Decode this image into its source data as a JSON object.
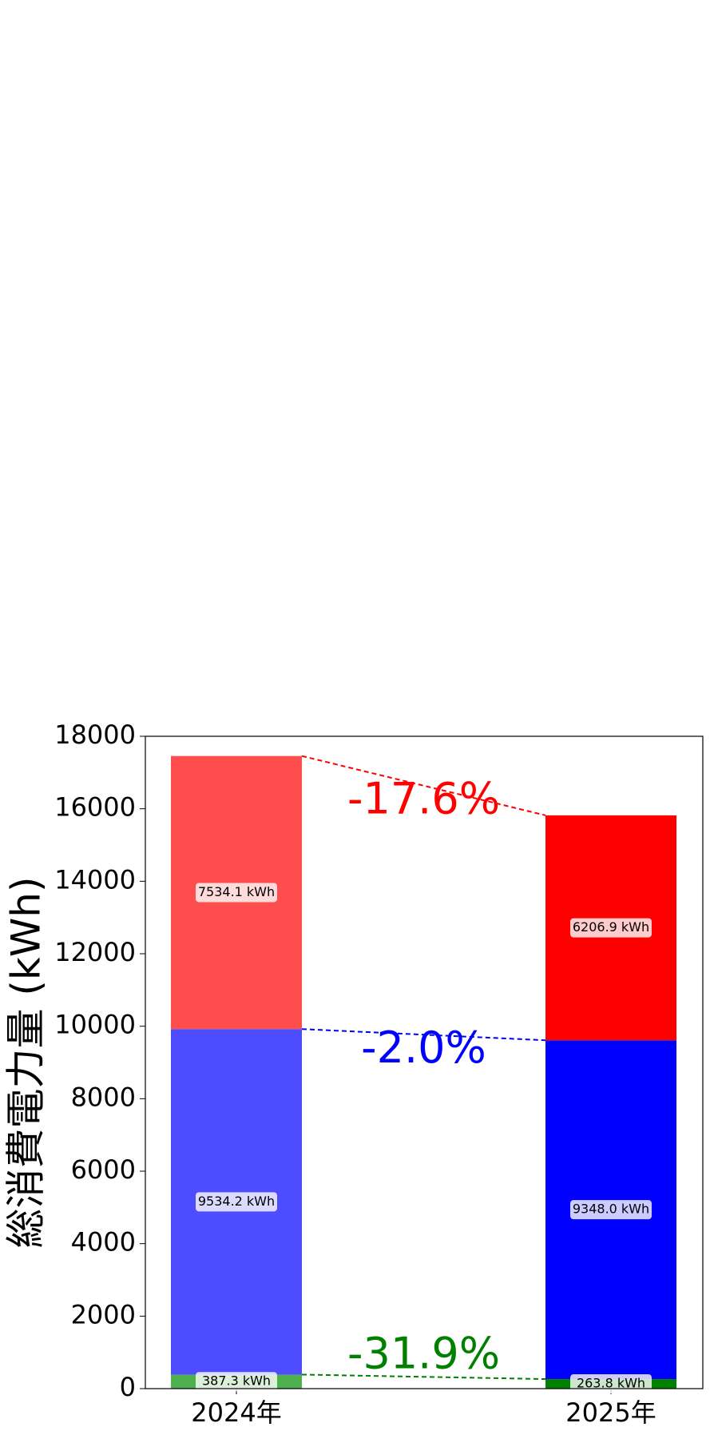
{
  "chart_data": {
    "type": "bar",
    "stacked": true,
    "ylabel": "総消費電力量 (kWh)",
    "categories": [
      "2024年",
      "2025年"
    ],
    "series": [
      {
        "name": "green",
        "color": [
          "#4daf4d",
          "#008000"
        ],
        "values": [
          387.3,
          263.8
        ],
        "value_labels": [
          "387.3 kWh",
          "263.8 kWh"
        ]
      },
      {
        "name": "blue",
        "color": [
          "#4d4dff",
          "#0000ff"
        ],
        "values": [
          9534.2,
          9348.0
        ],
        "value_labels": [
          "9534.2 kWh",
          "9348.0 kWh"
        ]
      },
      {
        "name": "red",
        "color": [
          "#ff4d4d",
          "#ff0000"
        ],
        "values": [
          7534.1,
          6206.9
        ],
        "value_labels": [
          "7534.1 kWh",
          "6206.9 kWh"
        ]
      }
    ],
    "annotations": [
      {
        "text": "-31.9%",
        "color": "#008000"
      },
      {
        "text": "-2.0%",
        "color": "#0000ff"
      },
      {
        "text": "-17.6%",
        "color": "#ff0000"
      }
    ],
    "ylim": [
      0,
      18000
    ],
    "yticks": [
      0,
      2000,
      4000,
      6000,
      8000,
      10000,
      12000,
      14000,
      16000,
      18000
    ]
  }
}
